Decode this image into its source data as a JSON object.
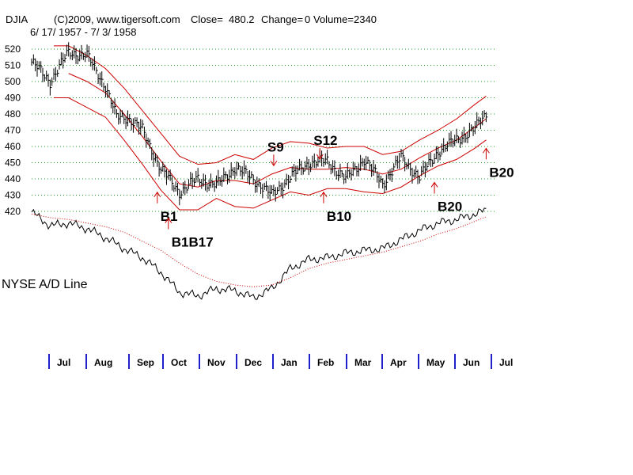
{
  "chart_data": {
    "type": "line",
    "header": {
      "ticker": "DJIA",
      "copyright": "(C)2009, www.tigersoft.com",
      "close_label": "Close=",
      "close": "480.2",
      "change_label": "Change=",
      "change": "0",
      "volume_label": "Volume=",
      "volume": "2340",
      "date_range": "6/ 17/ 1957 - 7/ 3/ 1958"
    },
    "y_ticks": [
      520,
      510,
      500,
      490,
      480,
      470,
      460,
      450,
      440,
      430,
      420
    ],
    "ylim": [
      420,
      520
    ],
    "months": [
      "Jul",
      "Aug",
      "Sep",
      "Oct",
      "Nov",
      "Dec",
      "Jan",
      "Feb",
      "Mar",
      "Apr",
      "May",
      "Jun",
      "Jul"
    ],
    "price_panel": {
      "grid": "dotted horizontal",
      "series": [
        {
          "role": "price",
          "color": "#000000",
          "style": "high-low bars",
          "x": [
            0,
            0.5,
            1,
            1.5,
            2,
            2.3,
            2.6,
            3,
            3.5,
            4,
            4.5,
            5,
            5.5,
            6,
            6.5,
            7,
            7.5,
            8,
            8.5,
            9,
            9.5,
            10,
            10.5,
            11,
            11.5,
            12,
            12.3
          ],
          "values": [
            512,
            500,
            518,
            516,
            497,
            478,
            478,
            470,
            446,
            432,
            440,
            436,
            447,
            440,
            430,
            441,
            450,
            451,
            440,
            452,
            437,
            453,
            441,
            457,
            464,
            471,
            480
          ]
        },
        {
          "role": "upper band",
          "color": "#cc0000",
          "x": [
            0.6,
            1,
            1.5,
            2,
            2.5,
            3,
            3.5,
            4,
            4.5,
            5,
            5.5,
            6,
            6.5,
            7,
            7.5,
            8,
            8.5,
            9,
            9.5,
            10,
            10.5,
            11,
            11.5,
            12,
            12.3
          ],
          "values": [
            522,
            522,
            516,
            508,
            496,
            482,
            468,
            454,
            449,
            450,
            455,
            452,
            459,
            463,
            462,
            459,
            460,
            460,
            455,
            457,
            464,
            470,
            477,
            486,
            491
          ]
        },
        {
          "role": "lower band",
          "color": "#cc0000",
          "x": [
            0.6,
            1,
            1.5,
            2,
            2.5,
            3,
            3.5,
            4,
            4.5,
            5,
            5.5,
            6,
            6.5,
            7,
            7.5,
            8,
            8.5,
            9,
            9.5,
            10,
            10.5,
            11,
            11.5,
            12,
            12.3
          ],
          "values": [
            490,
            490,
            484,
            478,
            464,
            449,
            433,
            421,
            421,
            428,
            423,
            422,
            427,
            432,
            430,
            434,
            434,
            432,
            431,
            435,
            442,
            448,
            452,
            459,
            464
          ]
        },
        {
          "role": "middle band",
          "color": "#cc0000",
          "x": [
            1,
            1.5,
            2,
            2.5,
            3,
            3.5,
            4,
            4.5,
            5,
            5.5,
            6,
            6.5,
            7,
            7.5,
            8,
            8.5,
            9,
            9.5,
            10,
            10.5,
            11,
            11.5,
            12,
            12.3
          ],
          "values": [
            505,
            500,
            493,
            480,
            466,
            451,
            437,
            435,
            439,
            439,
            437,
            443,
            447,
            446,
            446,
            447,
            446,
            443,
            446,
            453,
            459,
            464,
            472,
            477
          ]
        }
      ],
      "signals": [
        {
          "label": "S9",
          "type": "sell",
          "x": 6.55,
          "y": 455
        },
        {
          "label": "S12",
          "type": "sell",
          "x": 7.8,
          "y": 459
        },
        {
          "label": "B1",
          "type": "buy",
          "x": 3.4,
          "y": 425
        },
        {
          "label": "B1B17",
          "type": "buy",
          "x": 3.7,
          "y": 409
        },
        {
          "label": "B10",
          "type": "buy",
          "x": 7.9,
          "y": 425
        },
        {
          "label": "B20",
          "type": "buy",
          "x": 10.9,
          "y": 431
        },
        {
          "label": "B20",
          "type": "buy",
          "x": 12.3,
          "y": 452
        }
      ]
    },
    "ad_panel": {
      "title": "NYSE A/D Line",
      "series": [
        {
          "name": "NYSE A/D Line",
          "color": "#000000",
          "x": [
            0,
            0.5,
            1,
            1.5,
            2,
            2.5,
            3,
            3.5,
            4,
            4.5,
            5,
            5.5,
            6,
            6.5,
            7,
            7.5,
            8,
            8.5,
            9,
            9.5,
            10,
            10.5,
            11,
            11.5,
            12,
            12.3
          ],
          "values": [
            100,
            85,
            88,
            82,
            72,
            60,
            50,
            34,
            12,
            8,
            16,
            14,
            6,
            16,
            38,
            48,
            50,
            55,
            58,
            60,
            70,
            80,
            88,
            92,
            98,
            102
          ]
        },
        {
          "name": "moving average",
          "color": "#cc0000",
          "style": "dotted",
          "x": [
            0,
            0.5,
            1,
            1.5,
            2,
            2.5,
            3,
            3.5,
            4,
            4.5,
            5,
            5.5,
            6,
            6.5,
            7,
            7.5,
            8,
            8.5,
            9,
            9.5,
            10,
            10.5,
            11,
            11.5,
            12,
            12.3
          ],
          "values": [
            98,
            94,
            92,
            88,
            84,
            78,
            68,
            58,
            44,
            32,
            24,
            20,
            18,
            20,
            28,
            38,
            44,
            48,
            52,
            56,
            62,
            68,
            76,
            82,
            90,
            95
          ]
        }
      ]
    }
  }
}
